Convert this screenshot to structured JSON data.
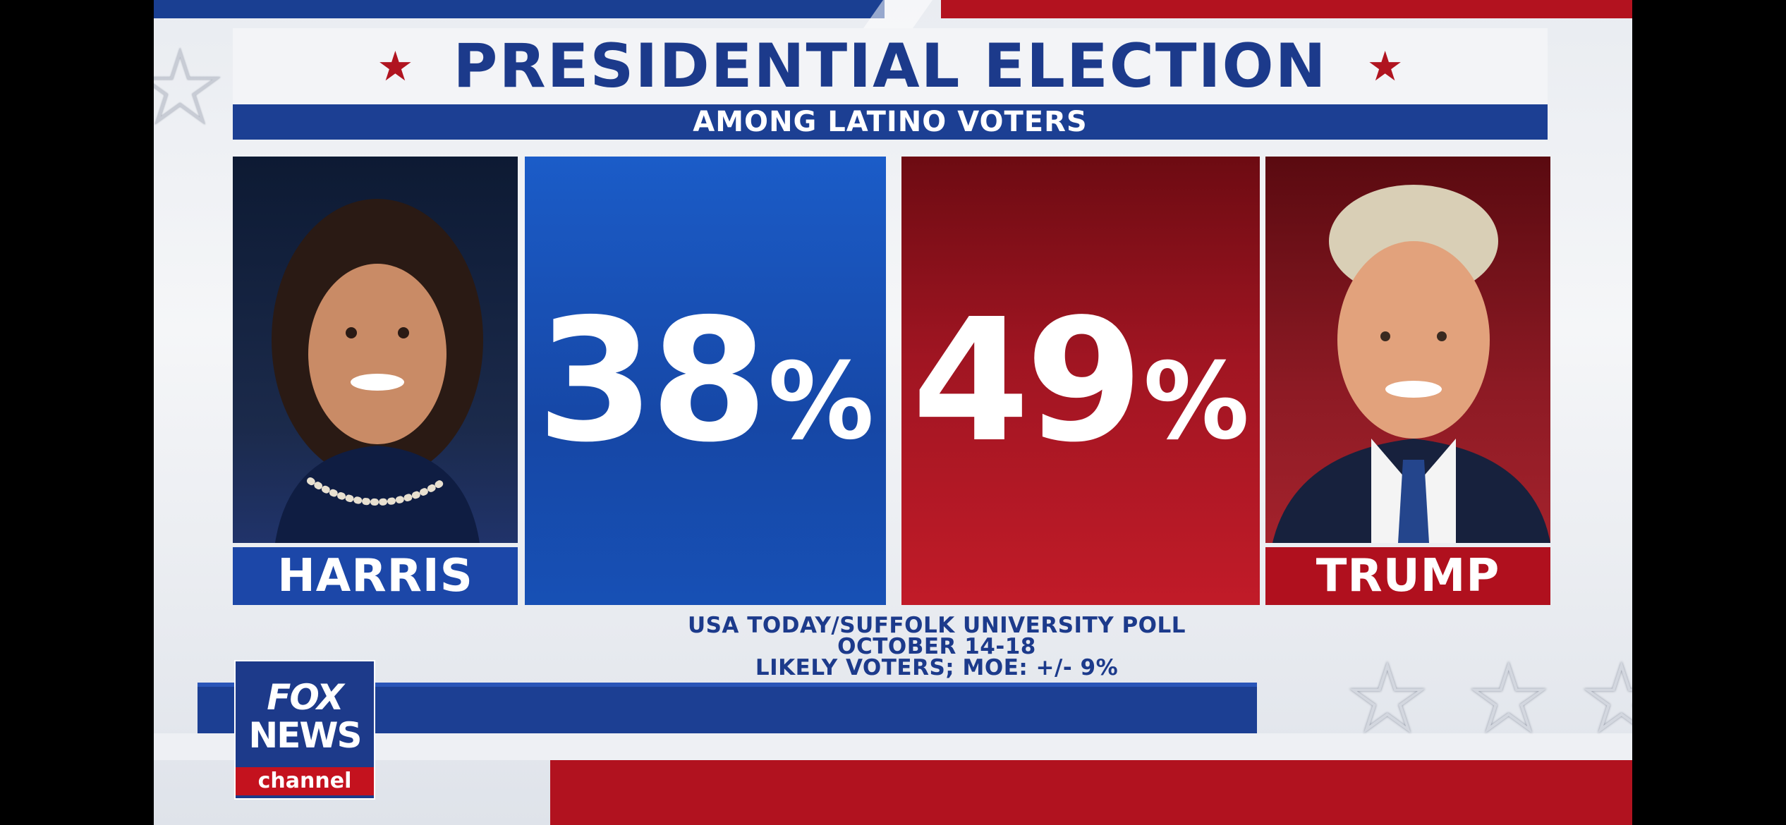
{
  "header": {
    "title": "PRESIDENTIAL ELECTION",
    "subtitle": "AMONG LATINO VOTERS"
  },
  "candidates": [
    {
      "name": "HARRIS",
      "percent": "38",
      "percent_sign": "%",
      "color": "#1c47a8"
    },
    {
      "name": "TRUMP",
      "percent": "49",
      "percent_sign": "%",
      "color": "#b0101e"
    }
  ],
  "source": {
    "line1": "USA TODAY/SUFFOLK UNIVERSITY  POLL",
    "line2": "OCTOBER 14-18",
    "line3": "LIKELY VOTERS; MOE: +/- 9%"
  },
  "logo": {
    "fox": "FOX",
    "news": "NEWS",
    "channel": "channel"
  },
  "colors": {
    "accent_blue": "#1c3f93",
    "accent_red": "#b1121f"
  }
}
